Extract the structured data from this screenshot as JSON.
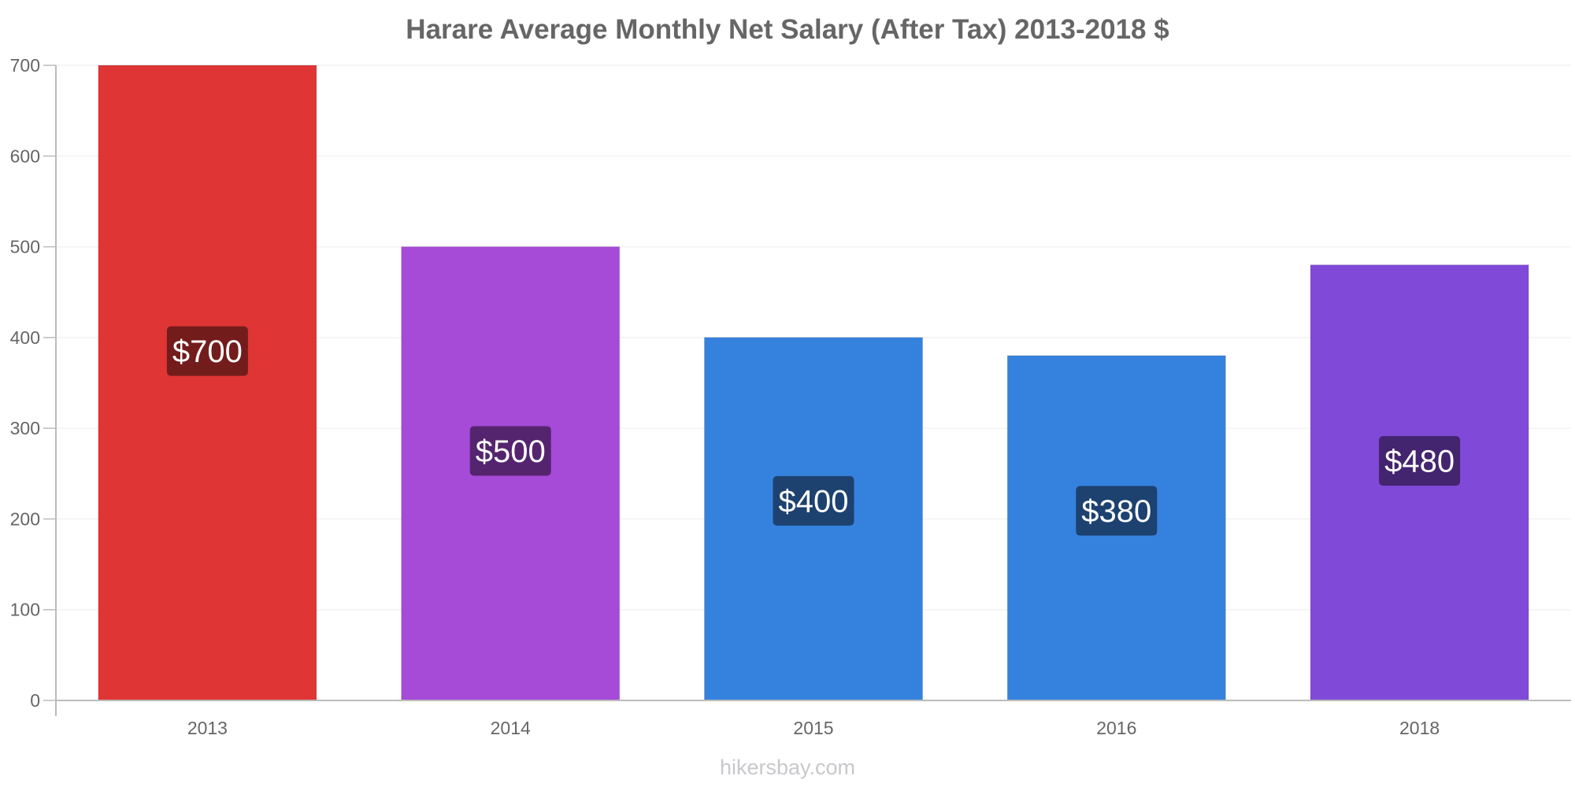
{
  "chart_data": {
    "type": "bar",
    "title": "Harare Average Monthly Net Salary (After Tax) 2013-2018 $",
    "xlabel": "",
    "ylabel": "",
    "categories": [
      "2013",
      "2014",
      "2015",
      "2016",
      "2018"
    ],
    "values": [
      700,
      500,
      400,
      380,
      480
    ],
    "data_labels": [
      "$700",
      "$500",
      "$400",
      "$380",
      "$480"
    ],
    "bar_colors": [
      "#e03535",
      "#a64ad8",
      "#3582de",
      "#3582de",
      "#8049d8"
    ],
    "label_box_colors": [
      "#731c1c",
      "#55246f",
      "#1d4270",
      "#1d4270",
      "#43246f"
    ],
    "ylim": [
      0,
      700
    ],
    "yticks": [
      0,
      100,
      200,
      300,
      400,
      500,
      600,
      700
    ],
    "grid": true,
    "legend": "none"
  },
  "footer": {
    "watermark": "hikersbay.com"
  }
}
